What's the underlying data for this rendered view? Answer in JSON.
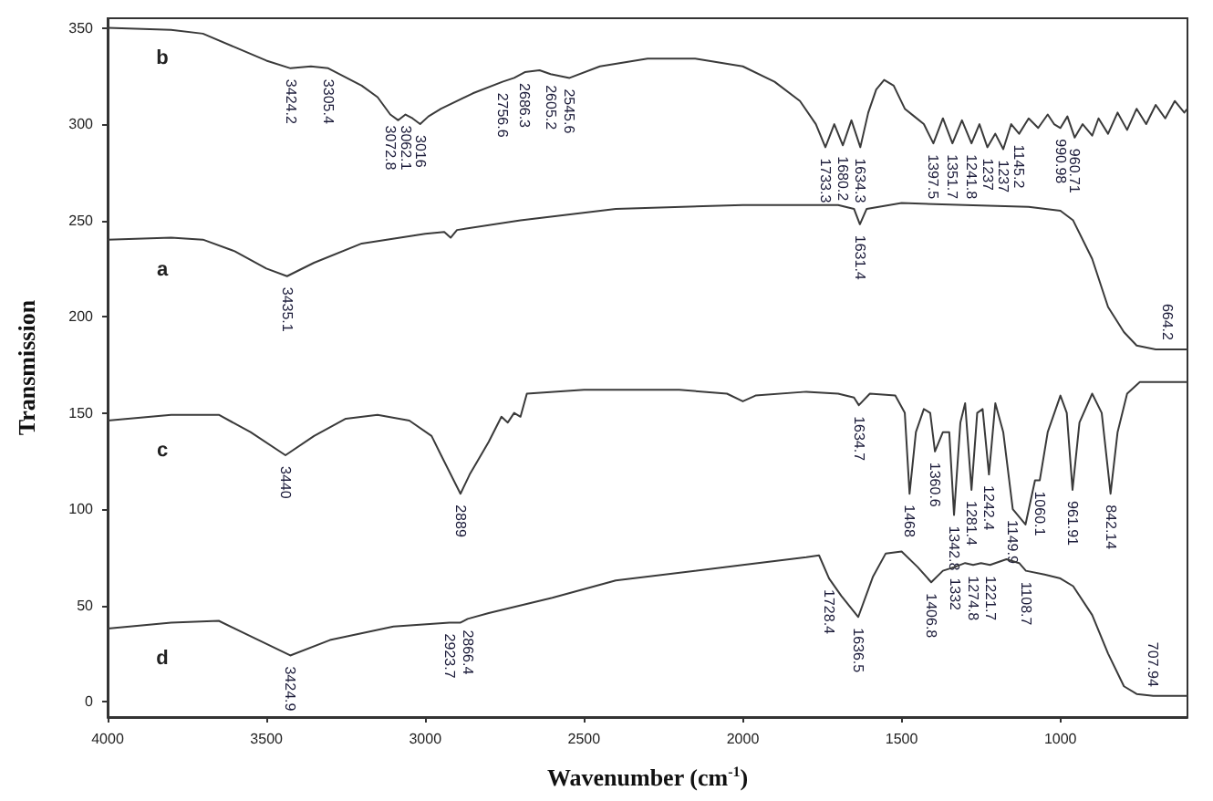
{
  "chart_data": {
    "type": "line",
    "xlabel": "Wavenumber (cm$^{-1}$)",
    "ylabel": "Transmission",
    "xlim": [
      4000,
      600
    ],
    "ylim": [
      -8,
      355
    ],
    "xticks": [
      4000,
      3500,
      3000,
      2500,
      2000,
      1500,
      1000
    ],
    "yticks": [
      0,
      50,
      100,
      150,
      200,
      250,
      300,
      350
    ],
    "grid": false,
    "legend": false,
    "marker": "none",
    "series": [
      {
        "name": "b",
        "color": "#3a3a3a",
        "x": [
          4000,
          3800,
          3700,
          3600,
          3500,
          3424.2,
          3360,
          3305.4,
          3200,
          3150,
          3110,
          3085,
          3062.1,
          3040,
          3016,
          2990,
          2950,
          2850,
          2756.6,
          2720,
          2686.3,
          2640,
          2605.2,
          2545.6,
          2450,
          2300,
          2150,
          2000,
          1900,
          1820,
          1770,
          1740,
          1712,
          1685,
          1658,
          1630,
          1605,
          1580,
          1555,
          1525,
          1490,
          1460,
          1430,
          1400,
          1370,
          1340,
          1310,
          1280,
          1255,
          1230,
          1205,
          1180,
          1155,
          1130,
          1100,
          1070,
          1040,
          1020,
          1000,
          978,
          955,
          930,
          900,
          880,
          850,
          820,
          790,
          760,
          730,
          700,
          670,
          640,
          610,
          600
        ],
        "values": [
          350,
          349,
          347,
          340,
          333,
          329,
          330,
          329,
          320,
          314,
          305,
          302,
          305,
          303,
          300,
          304,
          308,
          316,
          322,
          324,
          327,
          328,
          326,
          324,
          330,
          334,
          334,
          330,
          322,
          312,
          300,
          288,
          300,
          289,
          302,
          288,
          306,
          318,
          323,
          320,
          308,
          304,
          300,
          290,
          303,
          290,
          302,
          290,
          300,
          288,
          295,
          287,
          300,
          295,
          303,
          298,
          305,
          300,
          298,
          304,
          293,
          300,
          294,
          303,
          295,
          306,
          297,
          308,
          300,
          310,
          303,
          312,
          306,
          308
        ]
      },
      {
        "name": "a",
        "color": "#3a3a3a",
        "x": [
          4000,
          3800,
          3700,
          3600,
          3500,
          3435.1,
          3350,
          3200,
          3000,
          2940,
          2920,
          2900,
          2700,
          2400,
          2000,
          1700,
          1650,
          1631.4,
          1610,
          1500,
          1300,
          1100,
          1000,
          960,
          900,
          850,
          800,
          760,
          700,
          664.2,
          600
        ],
        "values": [
          240,
          241,
          240,
          234,
          225,
          221,
          228,
          238,
          243,
          244,
          241,
          245,
          250,
          256,
          258,
          258,
          256,
          248,
          256,
          259,
          258,
          257,
          255,
          250,
          230,
          205,
          192,
          185,
          183,
          183,
          183
        ]
      },
      {
        "name": "c",
        "color": "#3a3a3a",
        "x": [
          4000,
          3800,
          3650,
          3550,
          3440,
          3350,
          3250,
          3150,
          3050,
          2980,
          2950,
          2889,
          2860,
          2800,
          2760,
          2740,
          2720,
          2700,
          2680,
          2500,
          2200,
          2050,
          2000,
          1960,
          1800,
          1700,
          1650,
          1634.7,
          1600,
          1520,
          1490,
          1475,
          1455,
          1430,
          1410,
          1395,
          1370,
          1350,
          1335,
          1315,
          1300,
          1280,
          1262,
          1245,
          1225,
          1205,
          1180,
          1150,
          1110,
          1080,
          1065,
          1040,
          1000,
          980,
          961.91,
          940,
          900,
          870,
          842.14,
          820,
          790,
          750,
          600
        ],
        "values": [
          146,
          149,
          149,
          140,
          128,
          138,
          147,
          149,
          146,
          138,
          128,
          108,
          118,
          135,
          148,
          145,
          150,
          148,
          160,
          162,
          162,
          160,
          156,
          159,
          161,
          160,
          158,
          154,
          160,
          159,
          150,
          108,
          140,
          152,
          150,
          130,
          140,
          140,
          97,
          145,
          155,
          110,
          150,
          152,
          118,
          155,
          140,
          100,
          92,
          115,
          115,
          140,
          159,
          150,
          110,
          145,
          160,
          150,
          108,
          140,
          160,
          166,
          166
        ]
      },
      {
        "name": "d",
        "color": "#3a3a3a",
        "x": [
          4000,
          3800,
          3650,
          3550,
          3424.9,
          3300,
          3100,
          2923.7,
          2890,
          2866.4,
          2800,
          2600,
          2400,
          2000,
          1800,
          1760,
          1728.4,
          1690,
          1636.5,
          1590,
          1550,
          1500,
          1450,
          1406.8,
          1370,
          1332,
          1300,
          1274.8,
          1250,
          1221.7,
          1170,
          1130,
          1108.7,
          1050,
          1000,
          960,
          900,
          850,
          800,
          760,
          707.94,
          600
        ],
        "values": [
          38,
          41,
          42,
          34,
          24,
          32,
          39,
          41,
          41,
          43,
          46,
          54,
          63,
          71,
          75,
          76,
          64,
          55,
          44,
          65,
          77,
          78,
          70,
          62,
          68,
          70,
          72,
          71,
          72,
          71,
          74,
          72,
          68,
          66,
          64,
          60,
          45,
          25,
          8,
          4,
          3,
          3
        ]
      }
    ],
    "annotations": [
      {
        "text": "3424.2",
        "x": 3424.2,
        "y": 329
      },
      {
        "text": "3305.4",
        "x": 3305.4,
        "y": 329
      },
      {
        "text": "3072.8",
        "x": 3110,
        "y": 305
      },
      {
        "text": "3062.1",
        "x": 3062.1,
        "y": 305
      },
      {
        "text": "3016",
        "x": 3016,
        "y": 300
      },
      {
        "text": "2756.6",
        "x": 2756.6,
        "y": 322
      },
      {
        "text": "2686.3",
        "x": 2686.3,
        "y": 327
      },
      {
        "text": "2605.2",
        "x": 2605.2,
        "y": 326
      },
      {
        "text": "2545.6",
        "x": 2545.6,
        "y": 324
      },
      {
        "text": "1733.3",
        "x": 1740,
        "y": 288
      },
      {
        "text": "1680.2",
        "x": 1685,
        "y": 289
      },
      {
        "text": "1634.3",
        "x": 1630,
        "y": 288
      },
      {
        "text": "1397.5",
        "x": 1400,
        "y": 290
      },
      {
        "text": "1351.7",
        "x": 1340,
        "y": 290
      },
      {
        "text": "1241.8",
        "x": 1280,
        "y": 290
      },
      {
        "text": "1237",
        "x": 1230,
        "y": 288
      },
      {
        "text": "1237",
        "x": 1180,
        "y": 287
      },
      {
        "text": "1145.2",
        "x": 1130,
        "y": 295
      },
      {
        "text": "990.98",
        "x": 1000,
        "y": 298
      },
      {
        "text": "960.71",
        "x": 955,
        "y": 293
      },
      {
        "text": "3435.1",
        "x": 3435.1,
        "y": 221
      },
      {
        "text": "1631.4",
        "x": 1631.4,
        "y": 248
      },
      {
        "text": "664.2",
        "x": 664.2,
        "y": 183
      },
      {
        "text": "3440",
        "x": 3440,
        "y": 128
      },
      {
        "text": "2889",
        "x": 2889,
        "y": 108
      },
      {
        "text": "1634.7",
        "x": 1634.7,
        "y": 154
      },
      {
        "text": "1468",
        "x": 1475,
        "y": 108
      },
      {
        "text": "1360.6",
        "x": 1395,
        "y": 130
      },
      {
        "text": "1342.8",
        "x": 1335,
        "y": 97
      },
      {
        "text": "1281.4",
        "x": 1280,
        "y": 110
      },
      {
        "text": "1242.4",
        "x": 1225,
        "y": 118
      },
      {
        "text": "1149.9",
        "x": 1150,
        "y": 100
      },
      {
        "text": "1060.1",
        "x": 1065,
        "y": 115
      },
      {
        "text": "961.91",
        "x": 961.91,
        "y": 110
      },
      {
        "text": "842.14",
        "x": 842.14,
        "y": 108
      },
      {
        "text": "3424.9",
        "x": 3424.9,
        "y": 24
      },
      {
        "text": "2923.7",
        "x": 2923.7,
        "y": 41
      },
      {
        "text": "2866.4",
        "x": 2866.4,
        "y": 43
      },
      {
        "text": "1728.4",
        "x": 1728.4,
        "y": 64
      },
      {
        "text": "1636.5",
        "x": 1636.5,
        "y": 44
      },
      {
        "text": "1406.8",
        "x": 1406.8,
        "y": 62
      },
      {
        "text": "1332",
        "x": 1332,
        "y": 70
      },
      {
        "text": "1274.8",
        "x": 1274.8,
        "y": 71
      },
      {
        "text": "1221.7",
        "x": 1221.7,
        "y": 71
      },
      {
        "text": "1108.7",
        "x": 1108.7,
        "y": 68
      },
      {
        "text": "707.94",
        "x": 707.94,
        "y": 3
      }
    ]
  }
}
